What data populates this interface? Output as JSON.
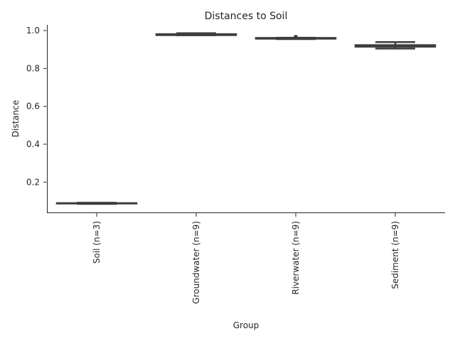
{
  "chart_data": {
    "type": "box",
    "title": "Distances to Soil",
    "xlabel": "Group",
    "ylabel": "Distance",
    "ylim": [
      0.04,
      1.03
    ],
    "yticks": [
      0.2,
      0.4,
      0.6,
      0.8,
      1.0
    ],
    "ytick_labels": [
      "0.2",
      "0.4",
      "0.6",
      "0.8",
      "1.0"
    ],
    "grid": false,
    "box_color": "#3d3d3d",
    "groups": [
      {
        "label": "Soil (n=3)",
        "n": 3,
        "min": 0.085,
        "q1": 0.087,
        "median": 0.088,
        "q3": 0.089,
        "max": 0.091,
        "fliers": []
      },
      {
        "label": "Groundwater (n=9)",
        "n": 9,
        "min": 0.975,
        "q1": 0.976,
        "median": 0.978,
        "q3": 0.981,
        "max": 0.986,
        "fliers": []
      },
      {
        "label": "Riverwater (n=9)",
        "n": 9,
        "min": 0.955,
        "q1": 0.957,
        "median": 0.959,
        "q3": 0.961,
        "max": 0.962,
        "fliers": [
          0.966
        ]
      },
      {
        "label": "Sediment (n=9)",
        "n": 9,
        "min": 0.905,
        "q1": 0.915,
        "median": 0.919,
        "q3": 0.923,
        "max": 0.939,
        "fliers": []
      }
    ]
  }
}
